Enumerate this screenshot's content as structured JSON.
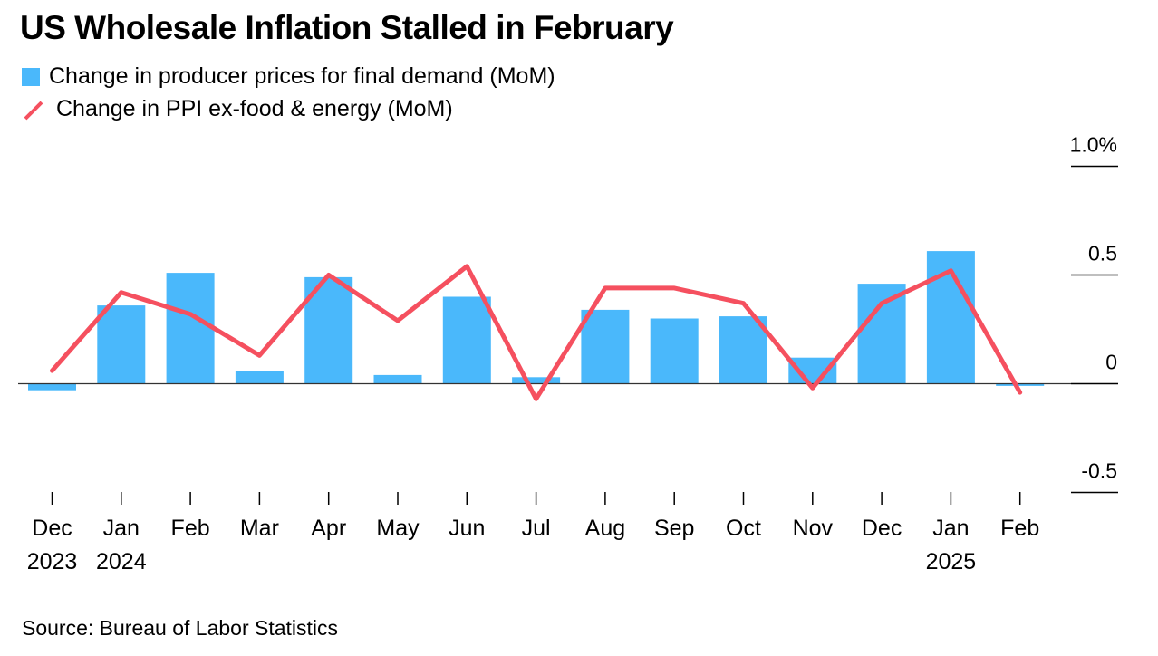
{
  "title": "US Wholesale Inflation Stalled in February",
  "source": "Source: Bureau of Labor Statistics",
  "colors": {
    "bar": "#4AB8FB",
    "line": "#F5505F",
    "axis": "#000000"
  },
  "chart_data": {
    "type": "bar",
    "categories": [
      "Dec",
      "Jan",
      "Feb",
      "Mar",
      "Apr",
      "May",
      "Jun",
      "Jul",
      "Aug",
      "Sep",
      "Oct",
      "Nov",
      "Dec",
      "Jan",
      "Feb"
    ],
    "year_labels": [
      "2023",
      "2024",
      "",
      "",
      "",
      "",
      "",
      "",
      "",
      "",
      "",
      "",
      "",
      "2025",
      ""
    ],
    "series": [
      {
        "name": "Change in producer prices for final demand (MoM)",
        "type": "bar",
        "values": [
          -0.03,
          0.36,
          0.51,
          0.06,
          0.49,
          0.04,
          0.4,
          0.03,
          0.34,
          0.3,
          0.31,
          0.12,
          0.46,
          0.61,
          -0.01
        ]
      },
      {
        "name": "Change in PPI ex-food & energy (MoM)",
        "type": "line",
        "values": [
          0.06,
          0.42,
          0.32,
          0.13,
          0.5,
          0.29,
          0.54,
          -0.07,
          0.44,
          0.44,
          0.37,
          -0.02,
          0.37,
          0.52,
          -0.04
        ]
      }
    ],
    "yticks": [
      {
        "value": 1.0,
        "label": "1.0%"
      },
      {
        "value": 0.5,
        "label": "0.5"
      },
      {
        "value": 0,
        "label": "0"
      },
      {
        "value": -0.5,
        "label": "-0.5"
      }
    ],
    "ylim": [
      -0.5,
      1.0
    ]
  }
}
